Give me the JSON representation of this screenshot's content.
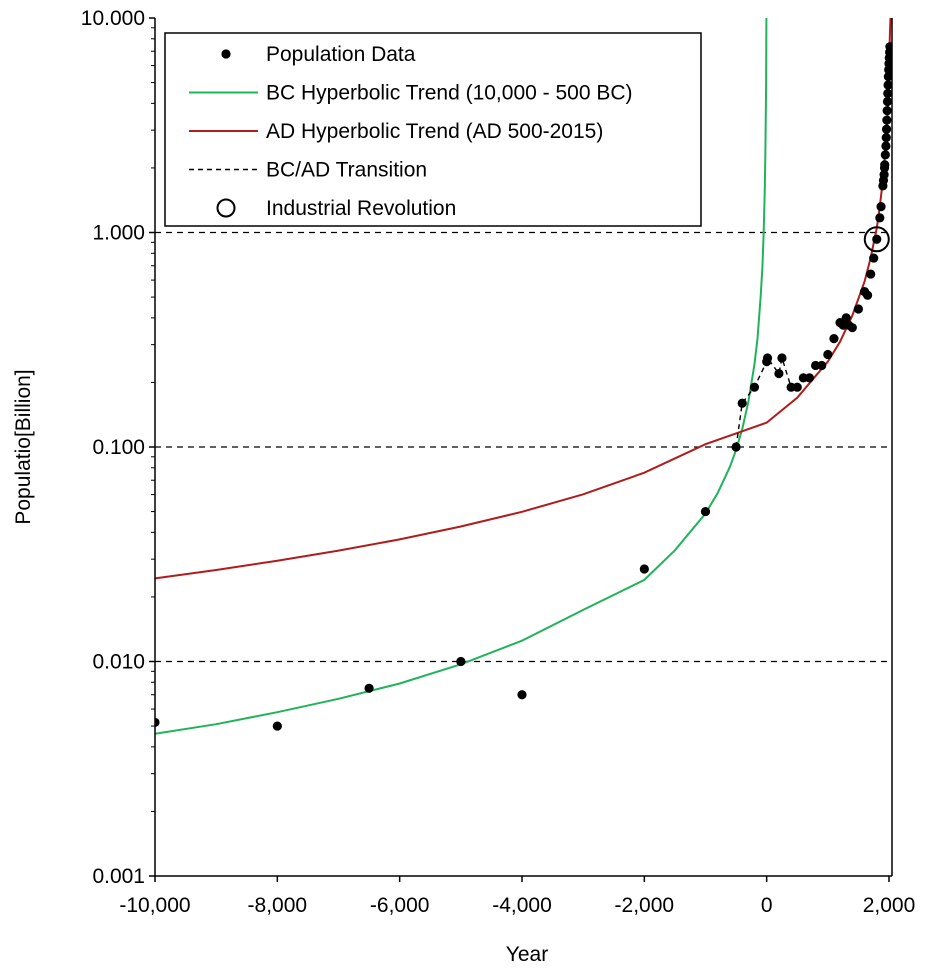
{
  "chart_data": {
    "type": "scatter",
    "xlabel": "Year",
    "ylabel": "Populatio[Billion]",
    "xlim": [
      -10000,
      2100
    ],
    "ylim": [
      0.001,
      10
    ],
    "yscale": "log",
    "x_ticks": [
      -10000,
      -8000,
      -6000,
      -4000,
      -2000,
      0,
      2000
    ],
    "x_tick_labels": [
      "-10,000",
      "-8,000",
      "-6,000",
      "-4,000",
      "-2,000",
      "0",
      "2,000"
    ],
    "y_ticks": [
      0.001,
      0.01,
      0.1,
      1,
      10
    ],
    "y_tick_labels": [
      "0.001",
      "0.010",
      "0.100",
      "1.000",
      "10.000"
    ],
    "reference_lines_y": [
      0.01,
      0.1,
      1
    ],
    "legend_position": "top-left",
    "legend": [
      {
        "label": "Population Data",
        "marker": "dot"
      },
      {
        "label": "BC Hyperbolic Trend (10,000 - 500 BC)",
        "marker": "line",
        "color": "#21b35a"
      },
      {
        "label": "AD  Hyperbolic Trend (AD 500-2015)",
        "marker": "line",
        "color": "#b01c1c"
      },
      {
        "label": "BC/AD Transition",
        "marker": "dashed",
        "color": "#000000"
      },
      {
        "label": "Industrial Revolution",
        "marker": "circle"
      }
    ],
    "series": [
      {
        "name": "Population Data",
        "kind": "scatter",
        "color": "#000000",
        "points": [
          [
            -10000,
            0.0052
          ],
          [
            -8000,
            0.005
          ],
          [
            -6500,
            0.0075
          ],
          [
            -5000,
            0.01
          ],
          [
            -4000,
            0.007
          ],
          [
            -2000,
            0.027
          ],
          [
            -1000,
            0.05
          ],
          [
            -500,
            0.1
          ],
          [
            -400,
            0.16
          ],
          [
            -200,
            0.19
          ],
          [
            1,
            0.25
          ],
          [
            14,
            0.26
          ],
          [
            200,
            0.22
          ],
          [
            250,
            0.26
          ],
          [
            400,
            0.19
          ],
          [
            500,
            0.19
          ],
          [
            600,
            0.21
          ],
          [
            700,
            0.21
          ],
          [
            800,
            0.24
          ],
          [
            900,
            0.24
          ],
          [
            1000,
            0.27
          ],
          [
            1100,
            0.32
          ],
          [
            1200,
            0.38
          ],
          [
            1250,
            0.37
          ],
          [
            1300,
            0.4
          ],
          [
            1340,
            0.37
          ],
          [
            1400,
            0.36
          ],
          [
            1500,
            0.44
          ],
          [
            1600,
            0.53
          ],
          [
            1650,
            0.51
          ],
          [
            1700,
            0.64
          ],
          [
            1750,
            0.76
          ],
          [
            1800,
            0.93
          ],
          [
            1850,
            1.17
          ],
          [
            1870,
            1.32
          ],
          [
            1900,
            1.65
          ],
          [
            1910,
            1.75
          ],
          [
            1920,
            1.86
          ],
          [
            1927,
            2.0
          ],
          [
            1930,
            2.07
          ],
          [
            1940,
            2.3
          ],
          [
            1950,
            2.53
          ],
          [
            1955,
            2.77
          ],
          [
            1960,
            3.03
          ],
          [
            1965,
            3.34
          ],
          [
            1970,
            3.7
          ],
          [
            1975,
            4.08
          ],
          [
            1980,
            4.45
          ],
          [
            1985,
            4.87
          ],
          [
            1990,
            5.33
          ],
          [
            1995,
            5.74
          ],
          [
            2000,
            6.13
          ],
          [
            2005,
            6.52
          ],
          [
            2010,
            6.92
          ],
          [
            2015,
            7.35
          ]
        ]
      },
      {
        "name": "BC Hyperbolic Trend (10,000 - 500 BC)",
        "kind": "line",
        "color": "#21b35a",
        "points": [
          [
            -10000,
            0.0046
          ],
          [
            -9000,
            0.0051
          ],
          [
            -8000,
            0.0058
          ],
          [
            -7000,
            0.0067
          ],
          [
            -6000,
            0.0079
          ],
          [
            -5000,
            0.0097
          ],
          [
            -4000,
            0.0125
          ],
          [
            -3000,
            0.0174
          ],
          [
            -2000,
            0.024
          ],
          [
            -1500,
            0.033
          ],
          [
            -1000,
            0.049
          ],
          [
            -800,
            0.061
          ],
          [
            -600,
            0.081
          ],
          [
            -500,
            0.097
          ],
          [
            -400,
            0.121
          ],
          [
            -300,
            0.162
          ],
          [
            -200,
            0.242
          ],
          [
            -150,
            0.32
          ],
          [
            -100,
            0.49
          ],
          [
            -70,
            0.69
          ],
          [
            -50,
            0.97
          ],
          [
            -30,
            1.6
          ],
          [
            -20,
            2.4
          ],
          [
            -10,
            4.8
          ],
          [
            -5,
            10.0
          ]
        ]
      },
      {
        "name": "AD  Hyperbolic Trend (AD 500-2015)",
        "kind": "line",
        "color": "#b01c1c",
        "points": [
          [
            -10000,
            0.0244
          ],
          [
            -9000,
            0.0267
          ],
          [
            -8000,
            0.0295
          ],
          [
            -7000,
            0.0329
          ],
          [
            -6000,
            0.0371
          ],
          [
            -5000,
            0.0426
          ],
          [
            -4000,
            0.0499
          ],
          [
            -3000,
            0.0602
          ],
          [
            -2000,
            0.0759
          ],
          [
            -1000,
            0.103
          ],
          [
            0,
            0.13
          ],
          [
            500,
            0.17
          ],
          [
            1000,
            0.25
          ],
          [
            1200,
            0.31
          ],
          [
            1400,
            0.41
          ],
          [
            1600,
            0.59
          ],
          [
            1700,
            0.76
          ],
          [
            1800,
            1.05
          ],
          [
            1850,
            1.32
          ],
          [
            1900,
            1.76
          ],
          [
            1950,
            2.63
          ],
          [
            1970,
            3.3
          ],
          [
            1990,
            4.5
          ],
          [
            2000,
            5.6
          ],
          [
            2015,
            8.4
          ],
          [
            2025,
            10.0
          ]
        ]
      },
      {
        "name": "BC/AD Transition",
        "kind": "dashed-line",
        "color": "#000000",
        "points": [
          [
            -500,
            0.1
          ],
          [
            -400,
            0.16
          ],
          [
            -200,
            0.19
          ],
          [
            1,
            0.25
          ],
          [
            14,
            0.26
          ],
          [
            200,
            0.22
          ],
          [
            250,
            0.26
          ],
          [
            400,
            0.19
          ],
          [
            500,
            0.19
          ]
        ]
      }
    ],
    "annotations": [
      {
        "label": "Industrial Revolution",
        "x": 1800,
        "y": 0.93,
        "marker": "circle"
      }
    ]
  }
}
